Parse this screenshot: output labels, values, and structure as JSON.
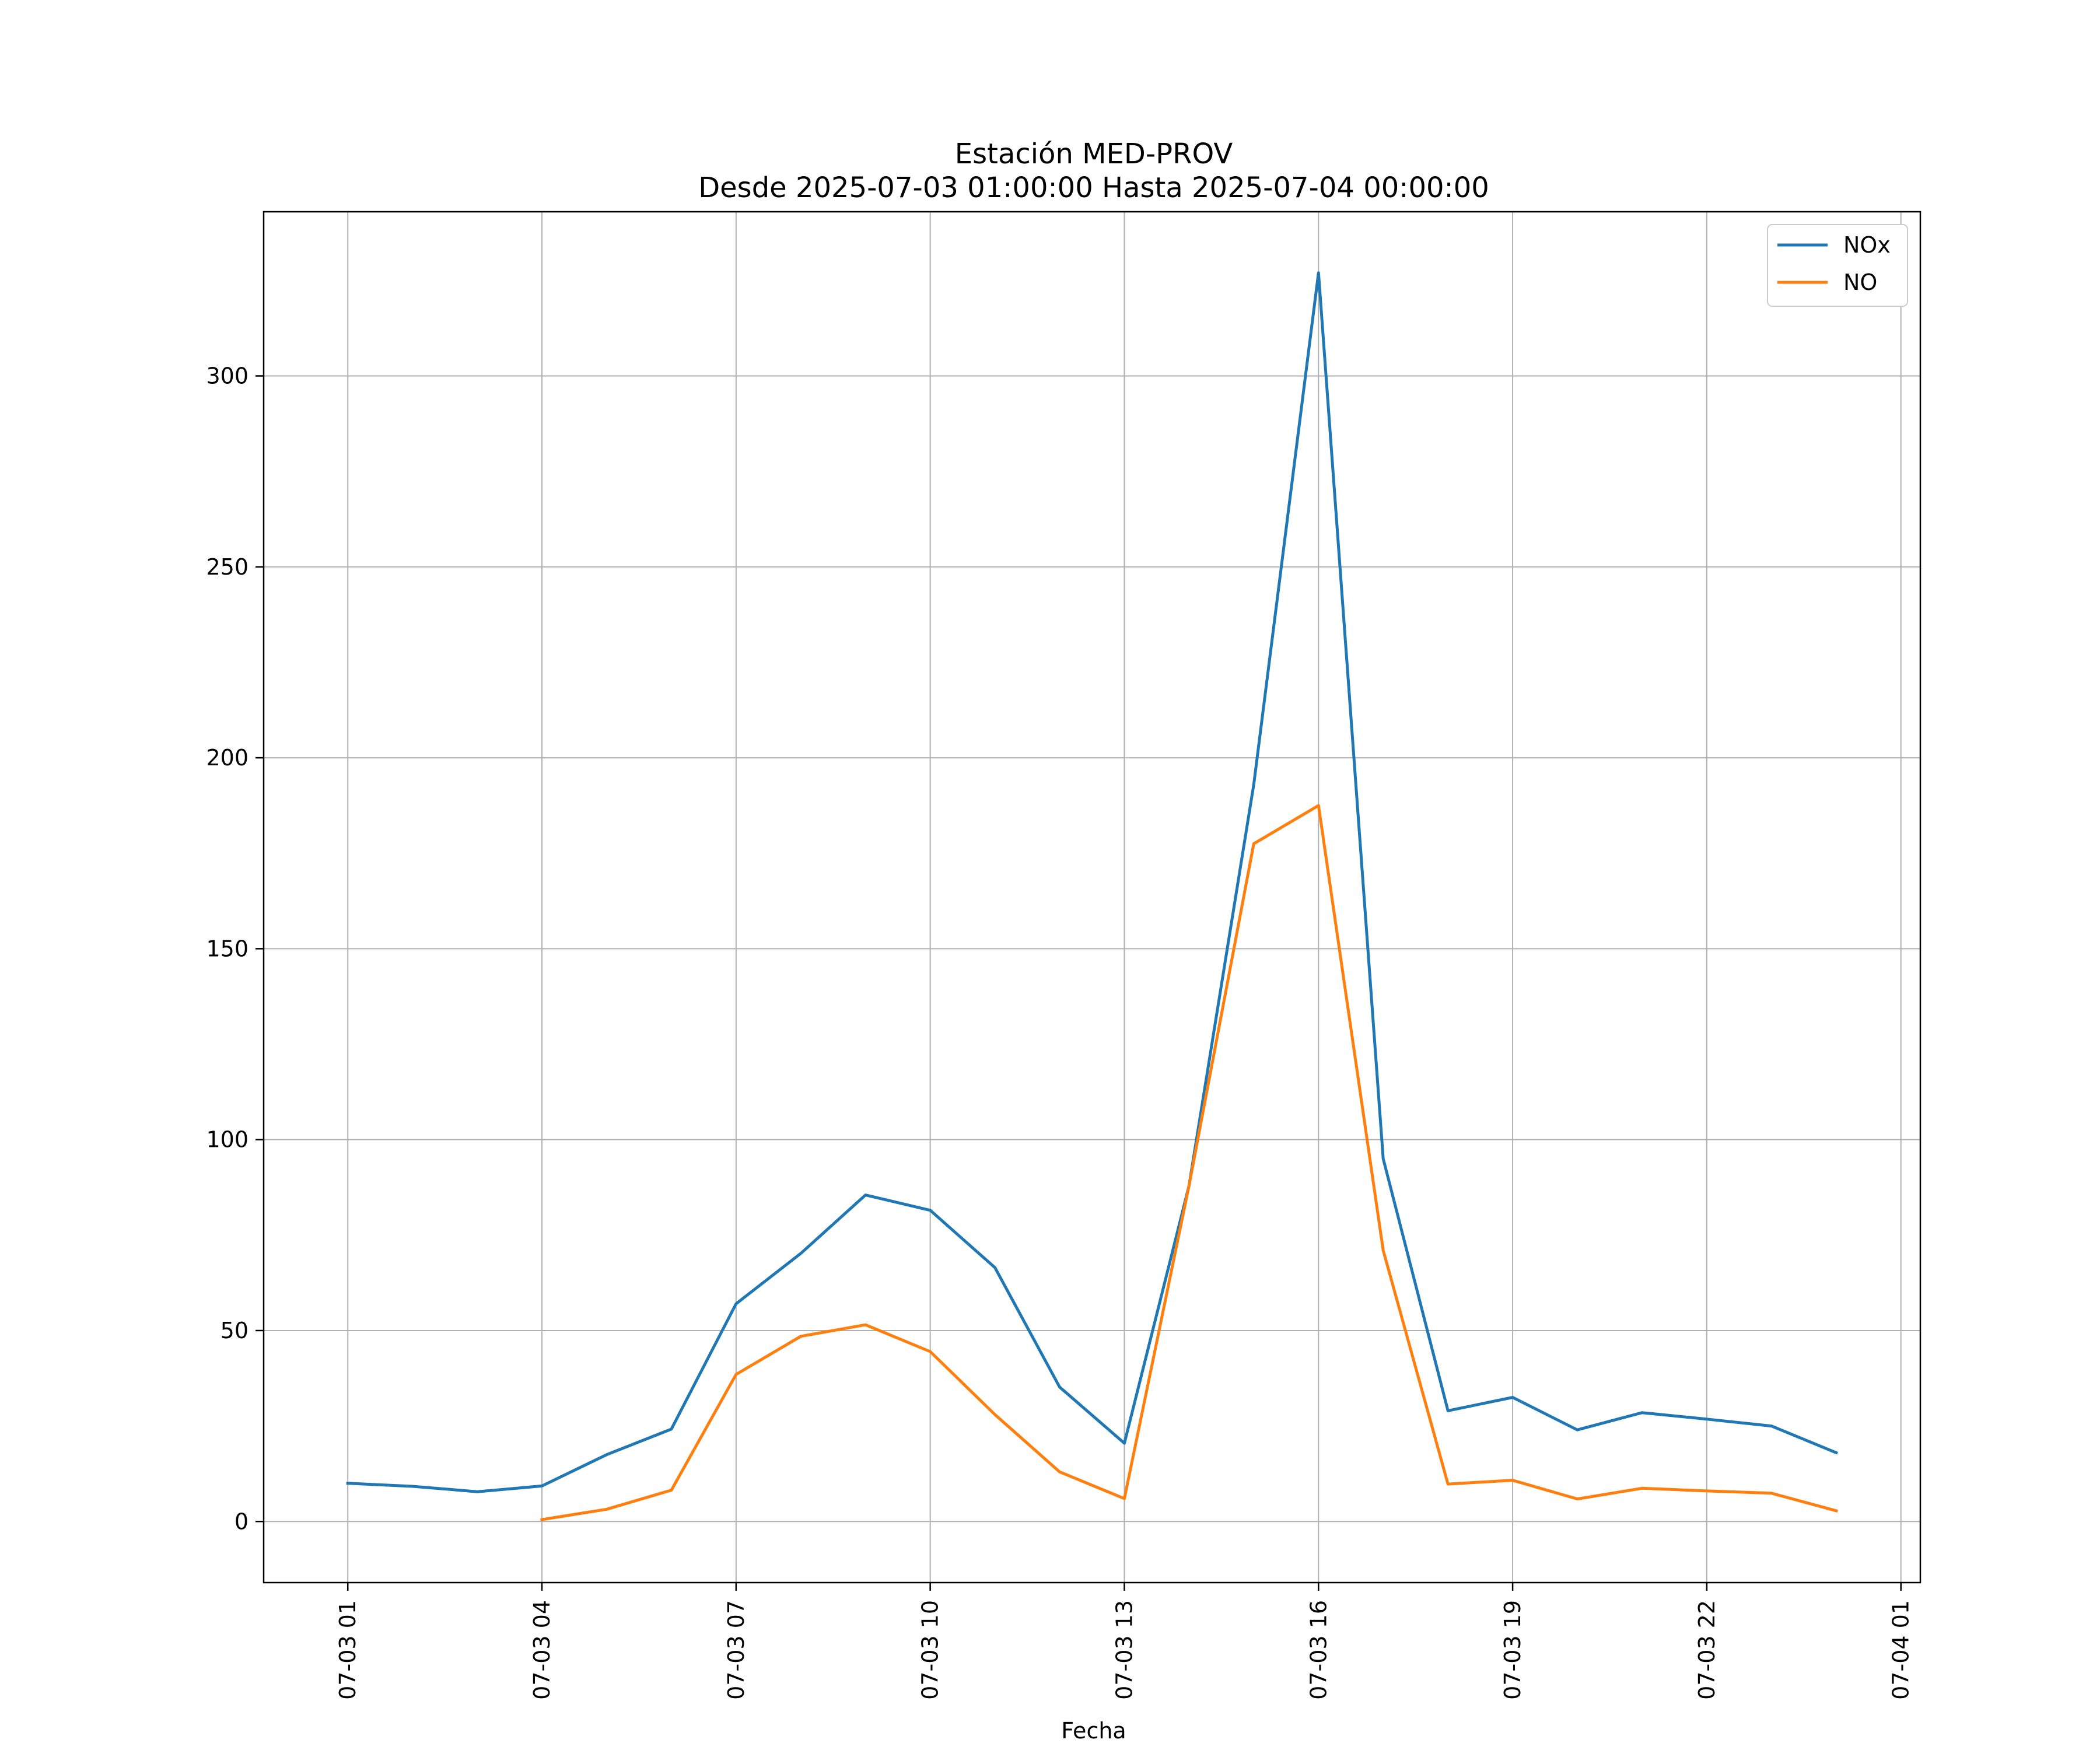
{
  "chart_data": {
    "type": "line",
    "title": "Estación MED-PROV",
    "subtitle": "Desde 2025-07-03 01:00:00 Hasta 2025-07-04 00:00:00",
    "xlabel": "Fecha",
    "ylabel": "",
    "x_hours": [
      1,
      2,
      3,
      4,
      5,
      6,
      7,
      8,
      9,
      10,
      11,
      12,
      13,
      14,
      15,
      16,
      17,
      18,
      19,
      20,
      21,
      22,
      23,
      24
    ],
    "xlim": [
      -0.3,
      25.3
    ],
    "ylim": [
      -16,
      343
    ],
    "grid": true,
    "legend_position": "top-right",
    "x_ticks": [
      {
        "hour": 1,
        "label": "07-03 01"
      },
      {
        "hour": 4,
        "label": "07-03 04"
      },
      {
        "hour": 7,
        "label": "07-03 07"
      },
      {
        "hour": 10,
        "label": "07-03 10"
      },
      {
        "hour": 13,
        "label": "07-03 13"
      },
      {
        "hour": 16,
        "label": "07-03 16"
      },
      {
        "hour": 19,
        "label": "07-03 19"
      },
      {
        "hour": 22,
        "label": "07-03 22"
      },
      {
        "hour": 25,
        "label": "07-04 01"
      }
    ],
    "y_ticks": [
      {
        "value": 0,
        "label": "0"
      },
      {
        "value": 50,
        "label": "50"
      },
      {
        "value": 100,
        "label": "100"
      },
      {
        "value": 150,
        "label": "150"
      },
      {
        "value": 200,
        "label": "200"
      },
      {
        "value": 250,
        "label": "250"
      },
      {
        "value": 300,
        "label": "300"
      }
    ],
    "series": [
      {
        "name": "NOx",
        "color": "#1f77b4",
        "values": [
          10,
          9.2,
          7.8,
          9.3,
          17.5,
          24.2,
          57,
          70.2,
          85.5,
          81.5,
          66.5,
          35.2,
          20.5,
          88,
          193,
          327,
          95,
          29,
          32.5,
          24,
          28.5,
          26.8,
          25,
          18
        ]
      },
      {
        "name": "NO",
        "color": "#ff7f0e",
        "values": [
          null,
          null,
          null,
          0.5,
          3.2,
          8.2,
          38.5,
          48.5,
          51.5,
          44.5,
          28,
          13,
          6,
          88,
          177.5,
          187.5,
          71,
          9.8,
          10.8,
          5.9,
          8.7,
          8,
          7.4,
          2.8
        ]
      }
    ]
  }
}
